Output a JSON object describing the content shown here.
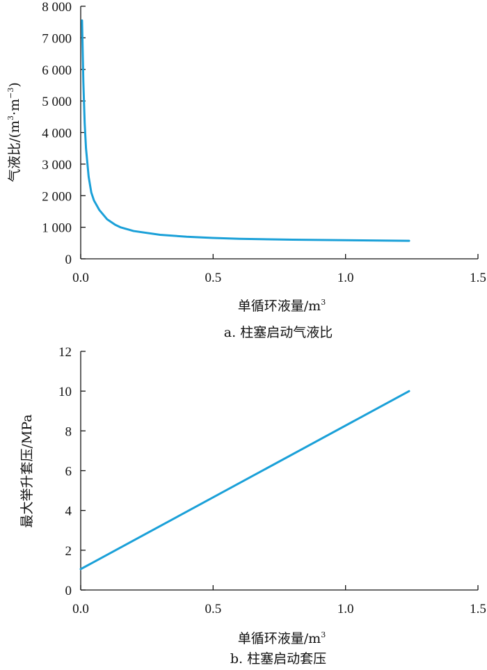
{
  "colors": {
    "series": "#1aa0d8",
    "axis": "#111111"
  },
  "chart_data": [
    {
      "type": "line",
      "caption": "a. 柱塞启动气液比",
      "xlabel": "单循环液量/m",
      "xlabel_sup": "3",
      "ylabel_main": "气液比/(m",
      "ylabel_sup1": "3",
      "ylabel_mid": "·m",
      "ylabel_sup2": "−3",
      "ylabel_end": ")",
      "xlim": [
        0,
        1.5
      ],
      "ylim": [
        0,
        8000
      ],
      "x_ticks": [
        0.0,
        0.5,
        1.0,
        1.5
      ],
      "x_tick_labels": [
        "0.0",
        "0.5",
        "1.0",
        "1.5"
      ],
      "y_ticks": [
        0,
        1000,
        2000,
        3000,
        4000,
        5000,
        6000,
        7000,
        8000
      ],
      "y_tick_labels": [
        "0",
        "1 000",
        "2 000",
        "3 000",
        "4 000",
        "5 000",
        "6 000",
        "7 000",
        "8 000"
      ],
      "series": [
        {
          "x": [
            0.005,
            0.01,
            0.015,
            0.02,
            0.03,
            0.04,
            0.05,
            0.07,
            0.1,
            0.13,
            0.15,
            0.2,
            0.3,
            0.4,
            0.5,
            0.6,
            0.8,
            1.0,
            1.24
          ],
          "values": [
            7550,
            5600,
            4300,
            3500,
            2600,
            2100,
            1850,
            1550,
            1250,
            1080,
            1000,
            880,
            760,
            700,
            660,
            635,
            605,
            590,
            570
          ]
        }
      ]
    },
    {
      "type": "line",
      "caption": "b. 柱塞启动套压",
      "xlabel": "单循环液量/m",
      "xlabel_sup": "3",
      "ylabel": "最大举升套压/MPa",
      "xlim": [
        0,
        1.5
      ],
      "ylim": [
        0,
        12
      ],
      "x_ticks": [
        0.0,
        0.5,
        1.0,
        1.5
      ],
      "x_tick_labels": [
        "0.0",
        "0.5",
        "1.0",
        "1.5"
      ],
      "y_ticks": [
        0,
        2,
        4,
        6,
        8,
        10,
        12
      ],
      "y_tick_labels": [
        "0",
        "2",
        "4",
        "6",
        "8",
        "10",
        "12"
      ],
      "series": [
        {
          "x": [
            0.0,
            1.24
          ],
          "values": [
            1.05,
            10.0
          ]
        }
      ]
    }
  ]
}
